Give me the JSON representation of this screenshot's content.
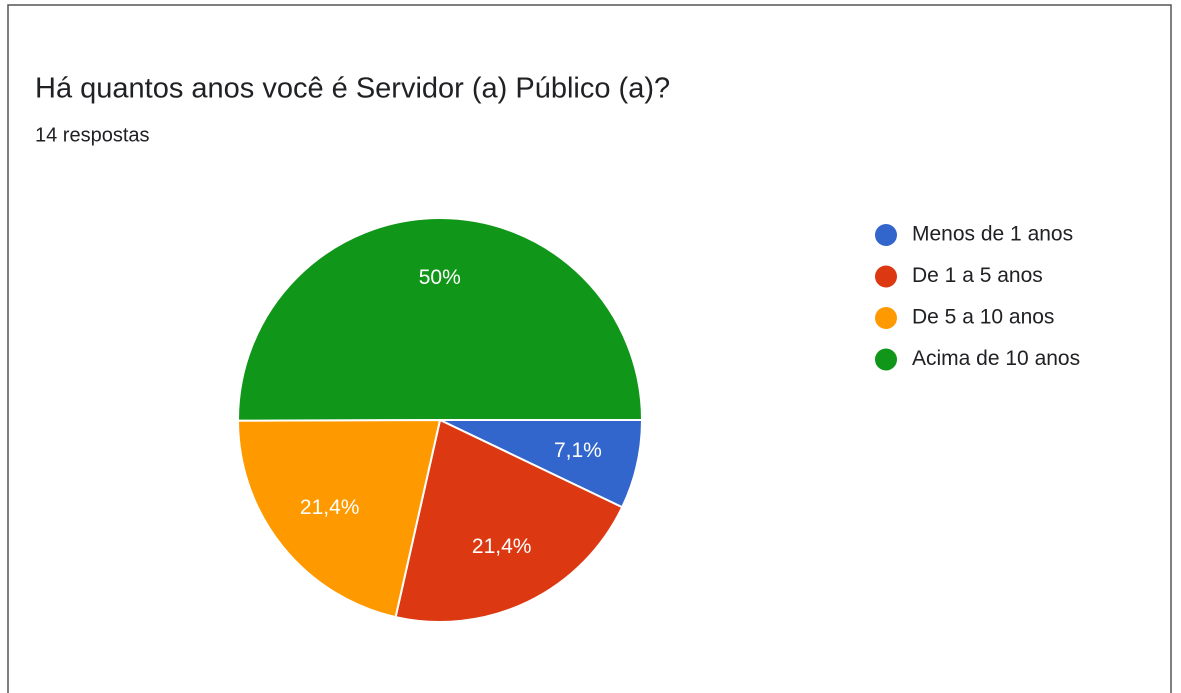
{
  "chart_data": {
    "type": "pie",
    "title": "Há quantos anos você é Servidor (a) Público (a)?",
    "subtitle": "14 respostas",
    "categories": [
      "Menos de 1 anos",
      "De 1 a 5 anos",
      "De 5 a 10 anos",
      "Acima de 10 anos"
    ],
    "values": [
      7.1,
      21.4,
      21.4,
      50
    ],
    "value_labels": [
      "7,1%",
      "21,4%",
      "21,4%",
      "50%"
    ],
    "colors": [
      "#3366cc",
      "#dc3912",
      "#ff9900",
      "#109618"
    ],
    "legend": "right"
  }
}
